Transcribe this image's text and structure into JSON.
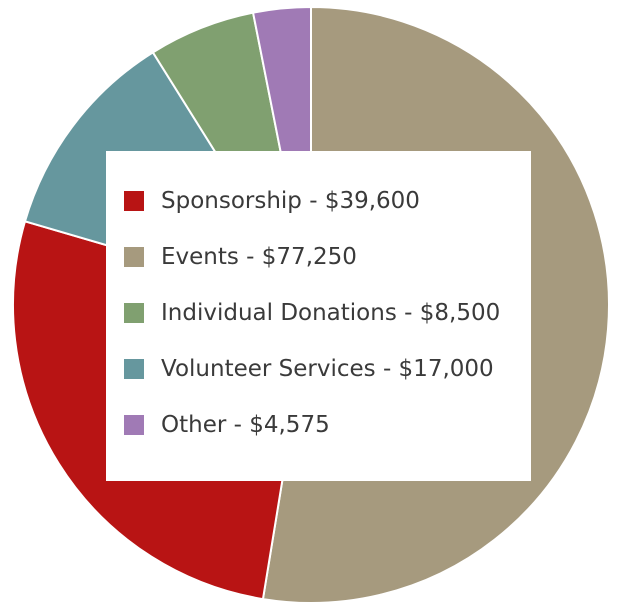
{
  "chart_data": {
    "type": "pie",
    "title": "",
    "slices": [
      {
        "label": "Events",
        "value": 77250,
        "color": "#a69a7e"
      },
      {
        "label": "Sponsorship",
        "value": 39600,
        "color": "#b81414"
      },
      {
        "label": "Volunteer Services",
        "value": 17000,
        "color": "#66979e"
      },
      {
        "label": "Individual Donations",
        "value": 8500,
        "color": "#80a070"
      },
      {
        "label": "Other",
        "value": 4575,
        "color": "#a07ab5"
      }
    ],
    "legend": {
      "placement": "center",
      "items": [
        {
          "text": "Sponsorship - $39,600",
          "color": "#b81414"
        },
        {
          "text": "Events - $77,250",
          "color": "#a69a7e"
        },
        {
          "text": "Individual Donations - $8,500",
          "color": "#80a070"
        },
        {
          "text": "Volunteer Services - $17,000",
          "color": "#66979e"
        },
        {
          "text": "Other - $4,575",
          "color": "#a07ab5"
        }
      ]
    }
  }
}
